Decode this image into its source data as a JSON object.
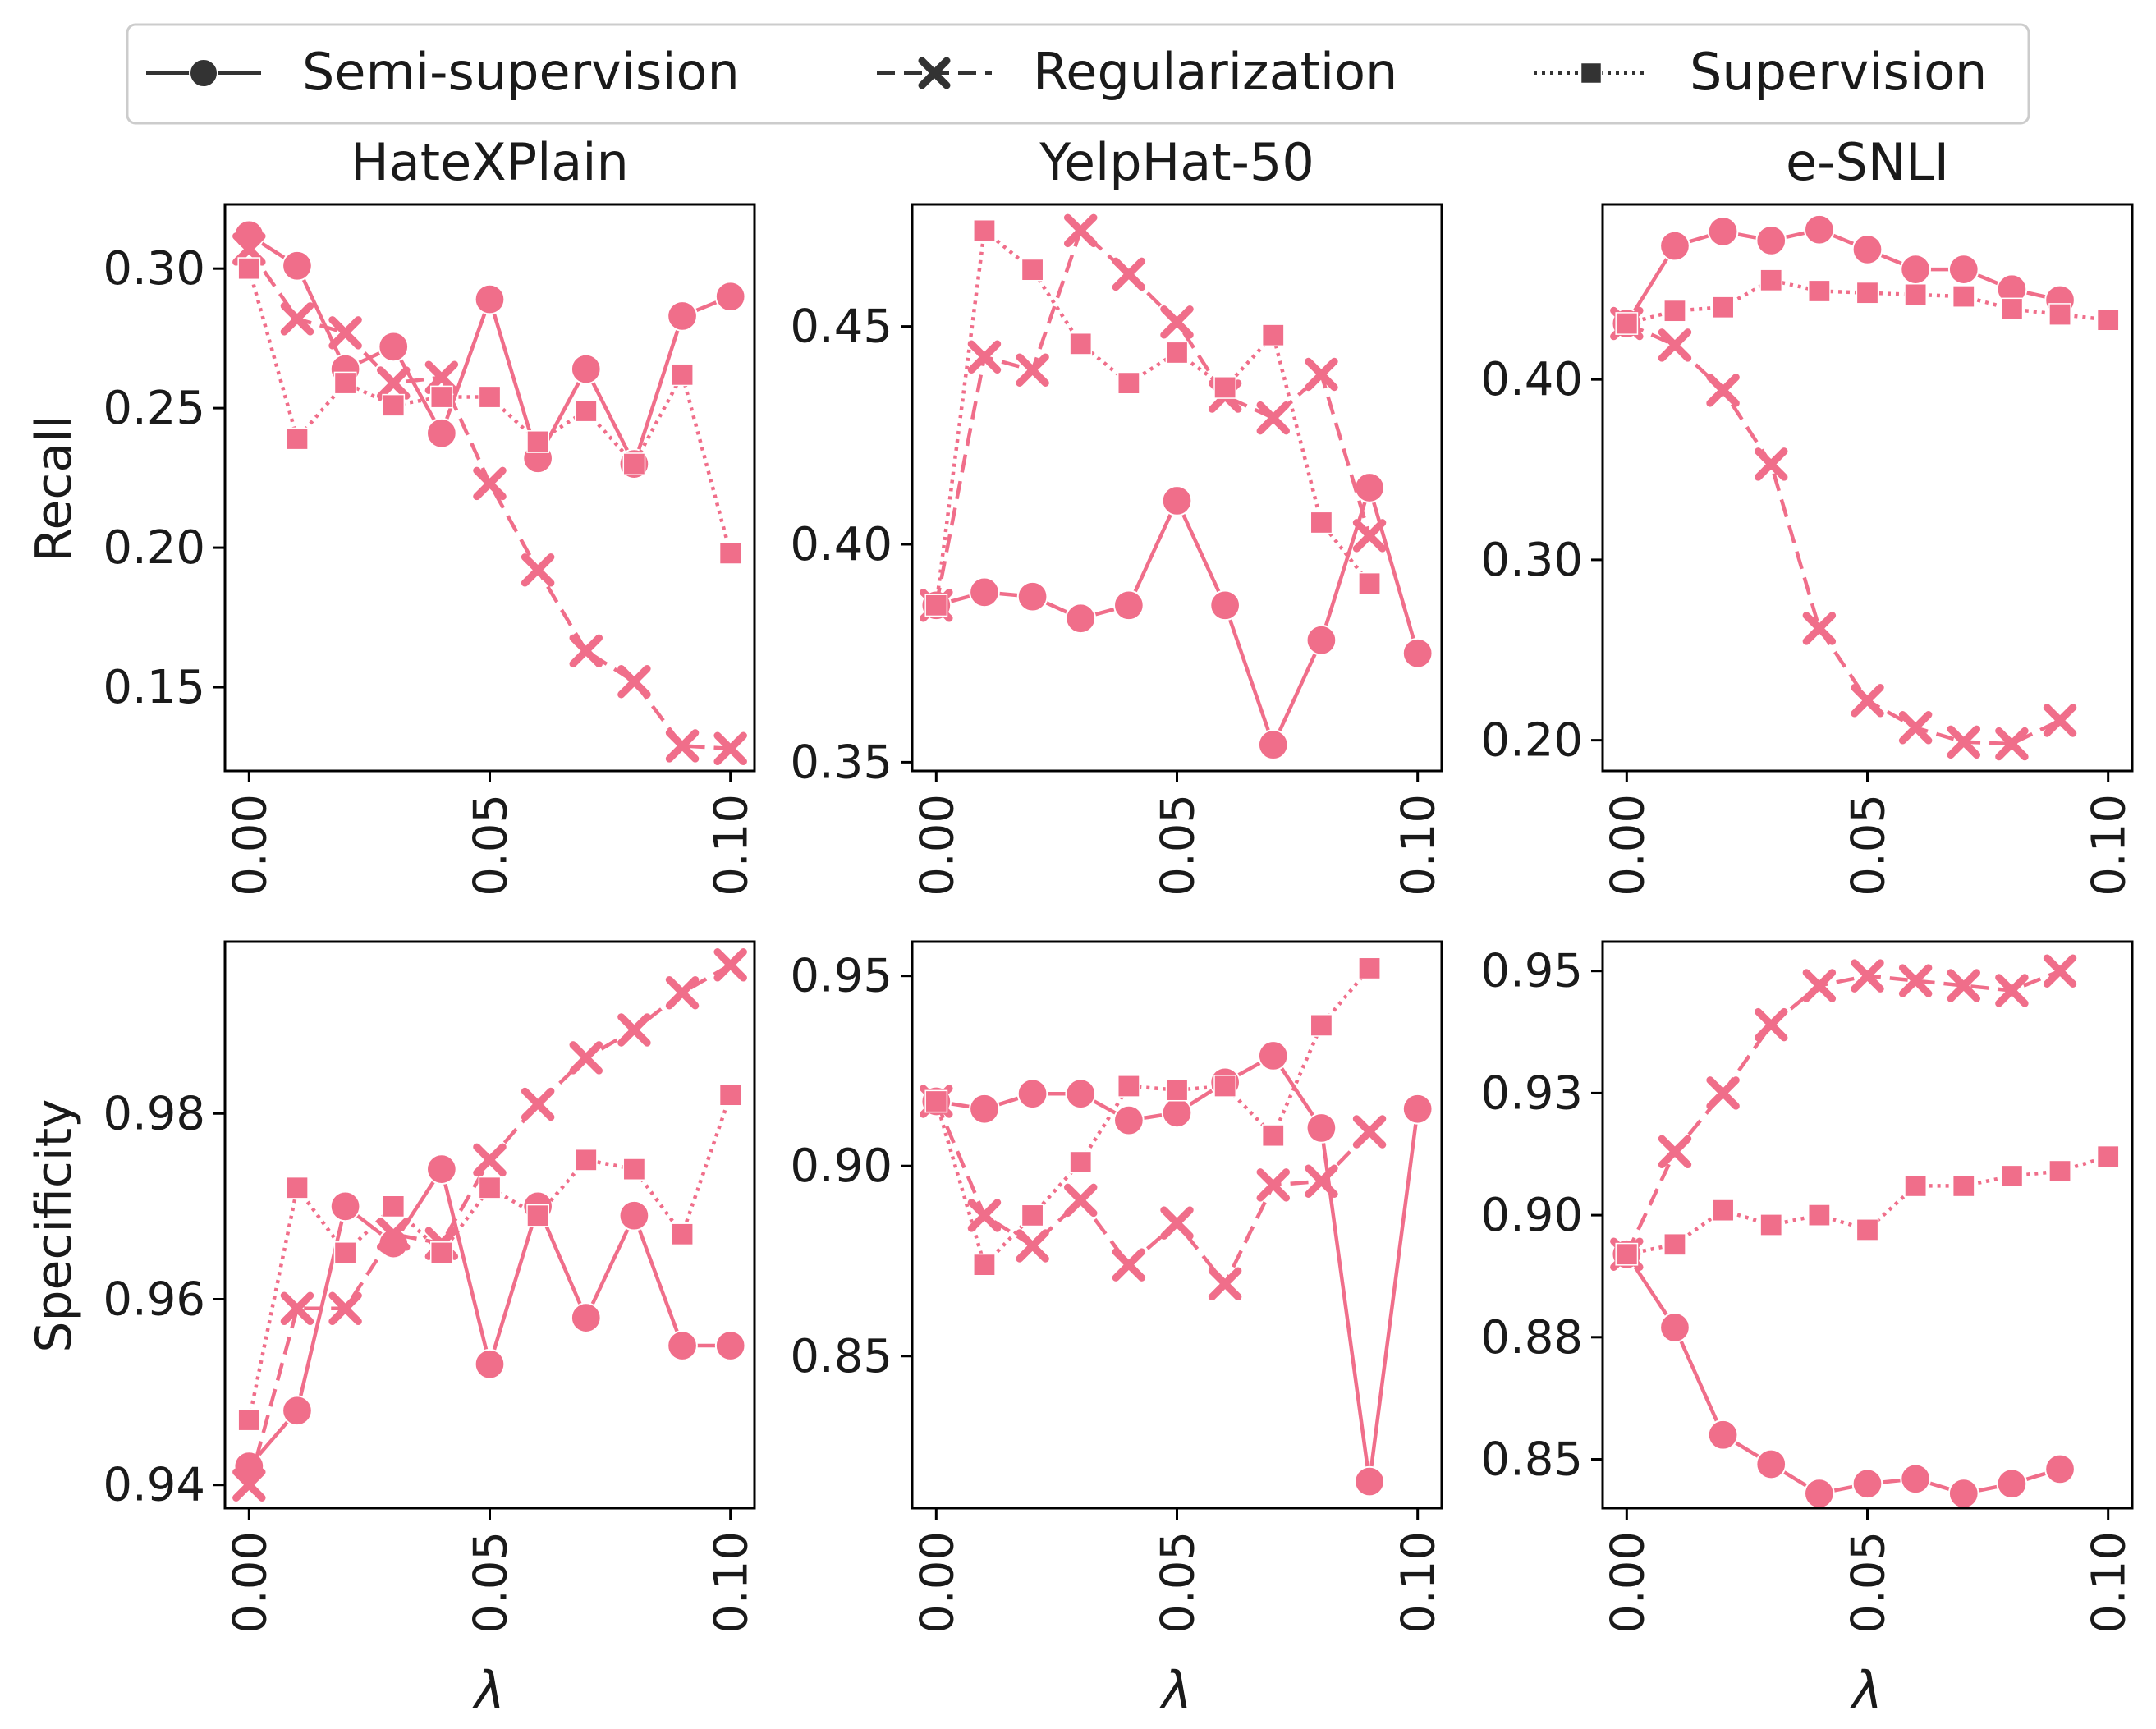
{
  "colors": {
    "series": "#f06e8a",
    "legend_line": "#333333",
    "axes": "#000000",
    "legend_border": "#cccccc"
  },
  "legend": [
    {
      "name": "Semi-supervision",
      "linestyle": "solid",
      "marker": "circle"
    },
    {
      "name": "Regularization",
      "linestyle": "dashed",
      "marker": "x"
    },
    {
      "name": "Supervision",
      "linestyle": "dotted",
      "marker": "square"
    }
  ],
  "row_labels": [
    "Recall",
    "Specificity"
  ],
  "xlabel": "λ",
  "chart_data": [
    {
      "type": "line",
      "title": "HateXPlain",
      "ylabel": "Recall",
      "x": [
        0.0,
        0.01,
        0.02,
        0.03,
        0.04,
        0.05,
        0.06,
        0.07,
        0.08,
        0.09,
        0.1
      ],
      "xticks": [
        "0.00",
        "0.05",
        "0.10"
      ],
      "xlim": [
        -0.005,
        0.105
      ],
      "yticks": [
        "0.15",
        "0.20",
        "0.25",
        "0.30"
      ],
      "ylim": [
        0.12,
        0.323
      ],
      "series": [
        {
          "name": "Semi-supervision",
          "values": [
            0.312,
            0.301,
            0.264,
            0.272,
            0.241,
            0.289,
            0.232,
            0.264,
            0.23,
            0.283,
            0.29
          ]
        },
        {
          "name": "Regularization",
          "values": [
            0.307,
            0.282,
            0.277,
            0.259,
            0.261,
            0.223,
            0.192,
            0.163,
            0.152,
            0.129,
            0.128
          ]
        },
        {
          "name": "Supervision",
          "values": [
            0.3,
            0.239,
            0.259,
            0.251,
            0.254,
            0.254,
            0.238,
            0.249,
            0.23,
            0.262,
            0.198
          ]
        }
      ]
    },
    {
      "type": "line",
      "title": "YelpHat-50",
      "ylabel": "",
      "x": [
        0.0,
        0.01,
        0.02,
        0.03,
        0.04,
        0.05,
        0.06,
        0.07,
        0.08,
        0.09,
        0.1
      ],
      "xticks": [
        "0.00",
        "0.05",
        "0.10"
      ],
      "xlim": [
        -0.005,
        0.105
      ],
      "yticks": [
        "0.35",
        "0.40",
        "0.45"
      ],
      "ylim": [
        0.348,
        0.478
      ],
      "series": [
        {
          "name": "Semi-supervision",
          "values": [
            0.386,
            0.389,
            0.388,
            0.383,
            0.386,
            0.41,
            0.386,
            0.354,
            0.378,
            0.413,
            0.375
          ]
        },
        {
          "name": "Regularization",
          "values": [
            0.386,
            0.443,
            0.44,
            0.472,
            0.462,
            0.451,
            0.434,
            0.429,
            0.439,
            0.402,
            null
          ]
        },
        {
          "name": "Supervision",
          "values": [
            0.386,
            0.472,
            0.463,
            0.446,
            0.437,
            0.444,
            0.436,
            0.448,
            0.405,
            0.391,
            null
          ]
        }
      ]
    },
    {
      "type": "line",
      "title": "e-SNLI",
      "ylabel": "",
      "x": [
        0.0,
        0.01,
        0.02,
        0.03,
        0.04,
        0.05,
        0.06,
        0.07,
        0.08,
        0.09,
        0.1
      ],
      "xticks": [
        "0.00",
        "0.05",
        "0.10"
      ],
      "xlim": [
        -0.005,
        0.105
      ],
      "yticks": [
        "0.20",
        "0.30",
        "0.40"
      ],
      "ylim": [
        0.183,
        0.497
      ],
      "series": [
        {
          "name": "Semi-supervision",
          "values": [
            0.431,
            0.474,
            0.482,
            0.477,
            0.483,
            0.472,
            0.461,
            0.461,
            0.45,
            0.444,
            null
          ]
        },
        {
          "name": "Regularization",
          "values": [
            0.431,
            0.419,
            0.394,
            0.353,
            0.262,
            0.222,
            0.207,
            0.199,
            0.198,
            0.211,
            null
          ]
        },
        {
          "name": "Supervision",
          "values": [
            0.431,
            0.438,
            0.44,
            0.455,
            0.449,
            0.448,
            0.447,
            0.446,
            0.439,
            0.436,
            0.433
          ]
        }
      ]
    },
    {
      "type": "line",
      "title": "",
      "ylabel": "Specificity",
      "x": [
        0.0,
        0.01,
        0.02,
        0.03,
        0.04,
        0.05,
        0.06,
        0.07,
        0.08,
        0.09,
        0.1
      ],
      "xticks": [
        "0.00",
        "0.05",
        "0.10"
      ],
      "xlim": [
        -0.005,
        0.105
      ],
      "yticks": [
        "0.94",
        "0.96",
        "0.98"
      ],
      "ylim": [
        0.9375,
        0.9985
      ],
      "series": [
        {
          "name": "Semi-supervision",
          "values": [
            0.942,
            0.948,
            0.97,
            0.966,
            0.974,
            0.953,
            0.97,
            0.958,
            0.969,
            0.955,
            0.955
          ]
        },
        {
          "name": "Regularization",
          "values": [
            0.94,
            0.959,
            0.959,
            0.967,
            0.966,
            0.975,
            0.981,
            0.986,
            0.989,
            0.993,
            0.996
          ]
        },
        {
          "name": "Supervision",
          "values": [
            0.947,
            0.972,
            0.965,
            0.97,
            0.965,
            0.972,
            0.969,
            0.975,
            0.974,
            0.967,
            0.982
          ]
        }
      ]
    },
    {
      "type": "line",
      "title": "",
      "ylabel": "",
      "x": [
        0.0,
        0.01,
        0.02,
        0.03,
        0.04,
        0.05,
        0.06,
        0.07,
        0.08,
        0.09,
        0.1
      ],
      "xticks": [
        "0.00",
        "0.05",
        "0.10"
      ],
      "xlim": [
        -0.005,
        0.105
      ],
      "yticks": [
        "0.85",
        "0.90",
        "0.95"
      ],
      "ylim": [
        0.81,
        0.959
      ],
      "series": [
        {
          "name": "Semi-supervision",
          "values": [
            0.917,
            0.915,
            0.919,
            0.919,
            0.912,
            0.914,
            0.922,
            0.929,
            0.91,
            0.817,
            0.915
          ]
        },
        {
          "name": "Regularization",
          "values": [
            0.917,
            0.887,
            0.879,
            0.891,
            0.874,
            0.885,
            0.869,
            0.895,
            0.896,
            0.909,
            null
          ]
        },
        {
          "name": "Supervision",
          "values": [
            0.917,
            0.874,
            0.887,
            0.901,
            0.921,
            0.92,
            0.921,
            0.908,
            0.937,
            0.952,
            null
          ]
        }
      ]
    },
    {
      "type": "line",
      "title": "",
      "ylabel": "",
      "x": [
        0.0,
        0.01,
        0.02,
        0.03,
        0.04,
        0.05,
        0.06,
        0.07,
        0.08,
        0.09,
        0.1
      ],
      "xticks": [
        "0.00",
        "0.05",
        "0.10"
      ],
      "xlim": [
        -0.005,
        0.105
      ],
      "yticks": [
        "0.85",
        "0.88",
        "0.90",
        "0.93",
        "0.95"
      ],
      "ytick_positions": [
        0.85,
        0.875,
        0.9,
        0.925,
        0.95
      ],
      "ylim": [
        0.84,
        0.956
      ],
      "series": [
        {
          "name": "Semi-supervision",
          "values": [
            0.892,
            0.877,
            0.855,
            0.849,
            0.843,
            0.845,
            0.846,
            0.843,
            0.845,
            0.848,
            null
          ]
        },
        {
          "name": "Regularization",
          "values": [
            0.892,
            0.913,
            0.925,
            0.939,
            0.947,
            0.949,
            0.948,
            0.947,
            0.946,
            0.95,
            null
          ]
        },
        {
          "name": "Supervision",
          "values": [
            0.892,
            0.894,
            0.901,
            0.898,
            0.9,
            0.897,
            0.906,
            0.906,
            0.908,
            0.909,
            0.912
          ]
        }
      ]
    }
  ]
}
